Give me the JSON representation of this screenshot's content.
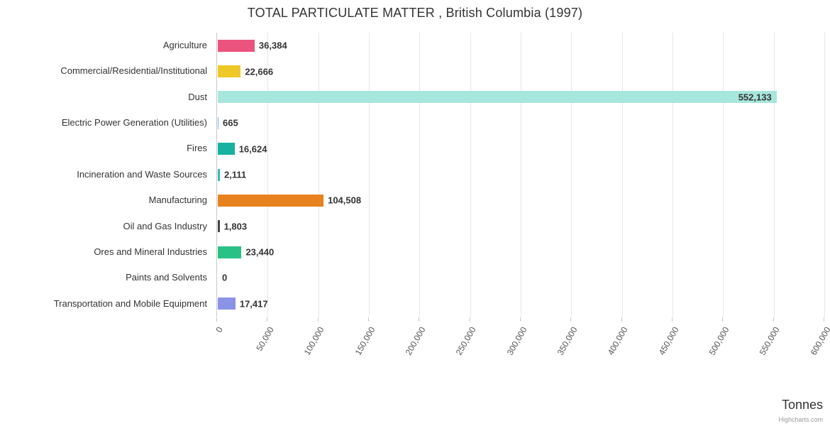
{
  "title": "TOTAL PARTICULATE MATTER , British Columbia (1997)",
  "xaxis_title": "Tonnes",
  "credit": "Highcharts.com",
  "chart_data": {
    "type": "bar",
    "orientation": "horizontal",
    "title": "TOTAL PARTICULATE MATTER , British Columbia (1997)",
    "xlabel": "Tonnes",
    "ylabel": "",
    "xlim": [
      0,
      600000
    ],
    "tick_interval": 50000,
    "tick_labels": [
      "0",
      "50,000",
      "100,000",
      "150,000",
      "200,000",
      "250,000",
      "300,000",
      "350,000",
      "400,000",
      "450,000",
      "500,000",
      "550,000",
      "600,000"
    ],
    "grid": true,
    "legend": false,
    "categories": [
      "Agriculture",
      "Commercial/Residential/Institutional",
      "Dust",
      "Electric Power Generation (Utilities)",
      "Fires",
      "Incineration and Waste Sources",
      "Manufacturing",
      "Oil and Gas Industry",
      "Ores and Mineral Industries",
      "Paints and Solvents",
      "Transportation and Mobile Equipment"
    ],
    "values": [
      36384,
      22666,
      552133,
      665,
      16624,
      2111,
      104508,
      1803,
      23440,
      0,
      17417
    ],
    "value_labels": [
      "36,384",
      "22,666",
      "552,133",
      "665",
      "16,624",
      "2,111",
      "104,508",
      "1,803",
      "23,440",
      "0",
      "17,417"
    ],
    "colors": [
      "#ec537f",
      "#eec826",
      "#a7e6dd",
      "#7cb5ec",
      "#17b1a0",
      "#35bdb2",
      "#e8821e",
      "#44464b",
      "#2ac187",
      "#999999",
      "#8b93e6"
    ],
    "gridline_color": "#e6e6e6",
    "axis_line_color": "#c8c8c8"
  }
}
